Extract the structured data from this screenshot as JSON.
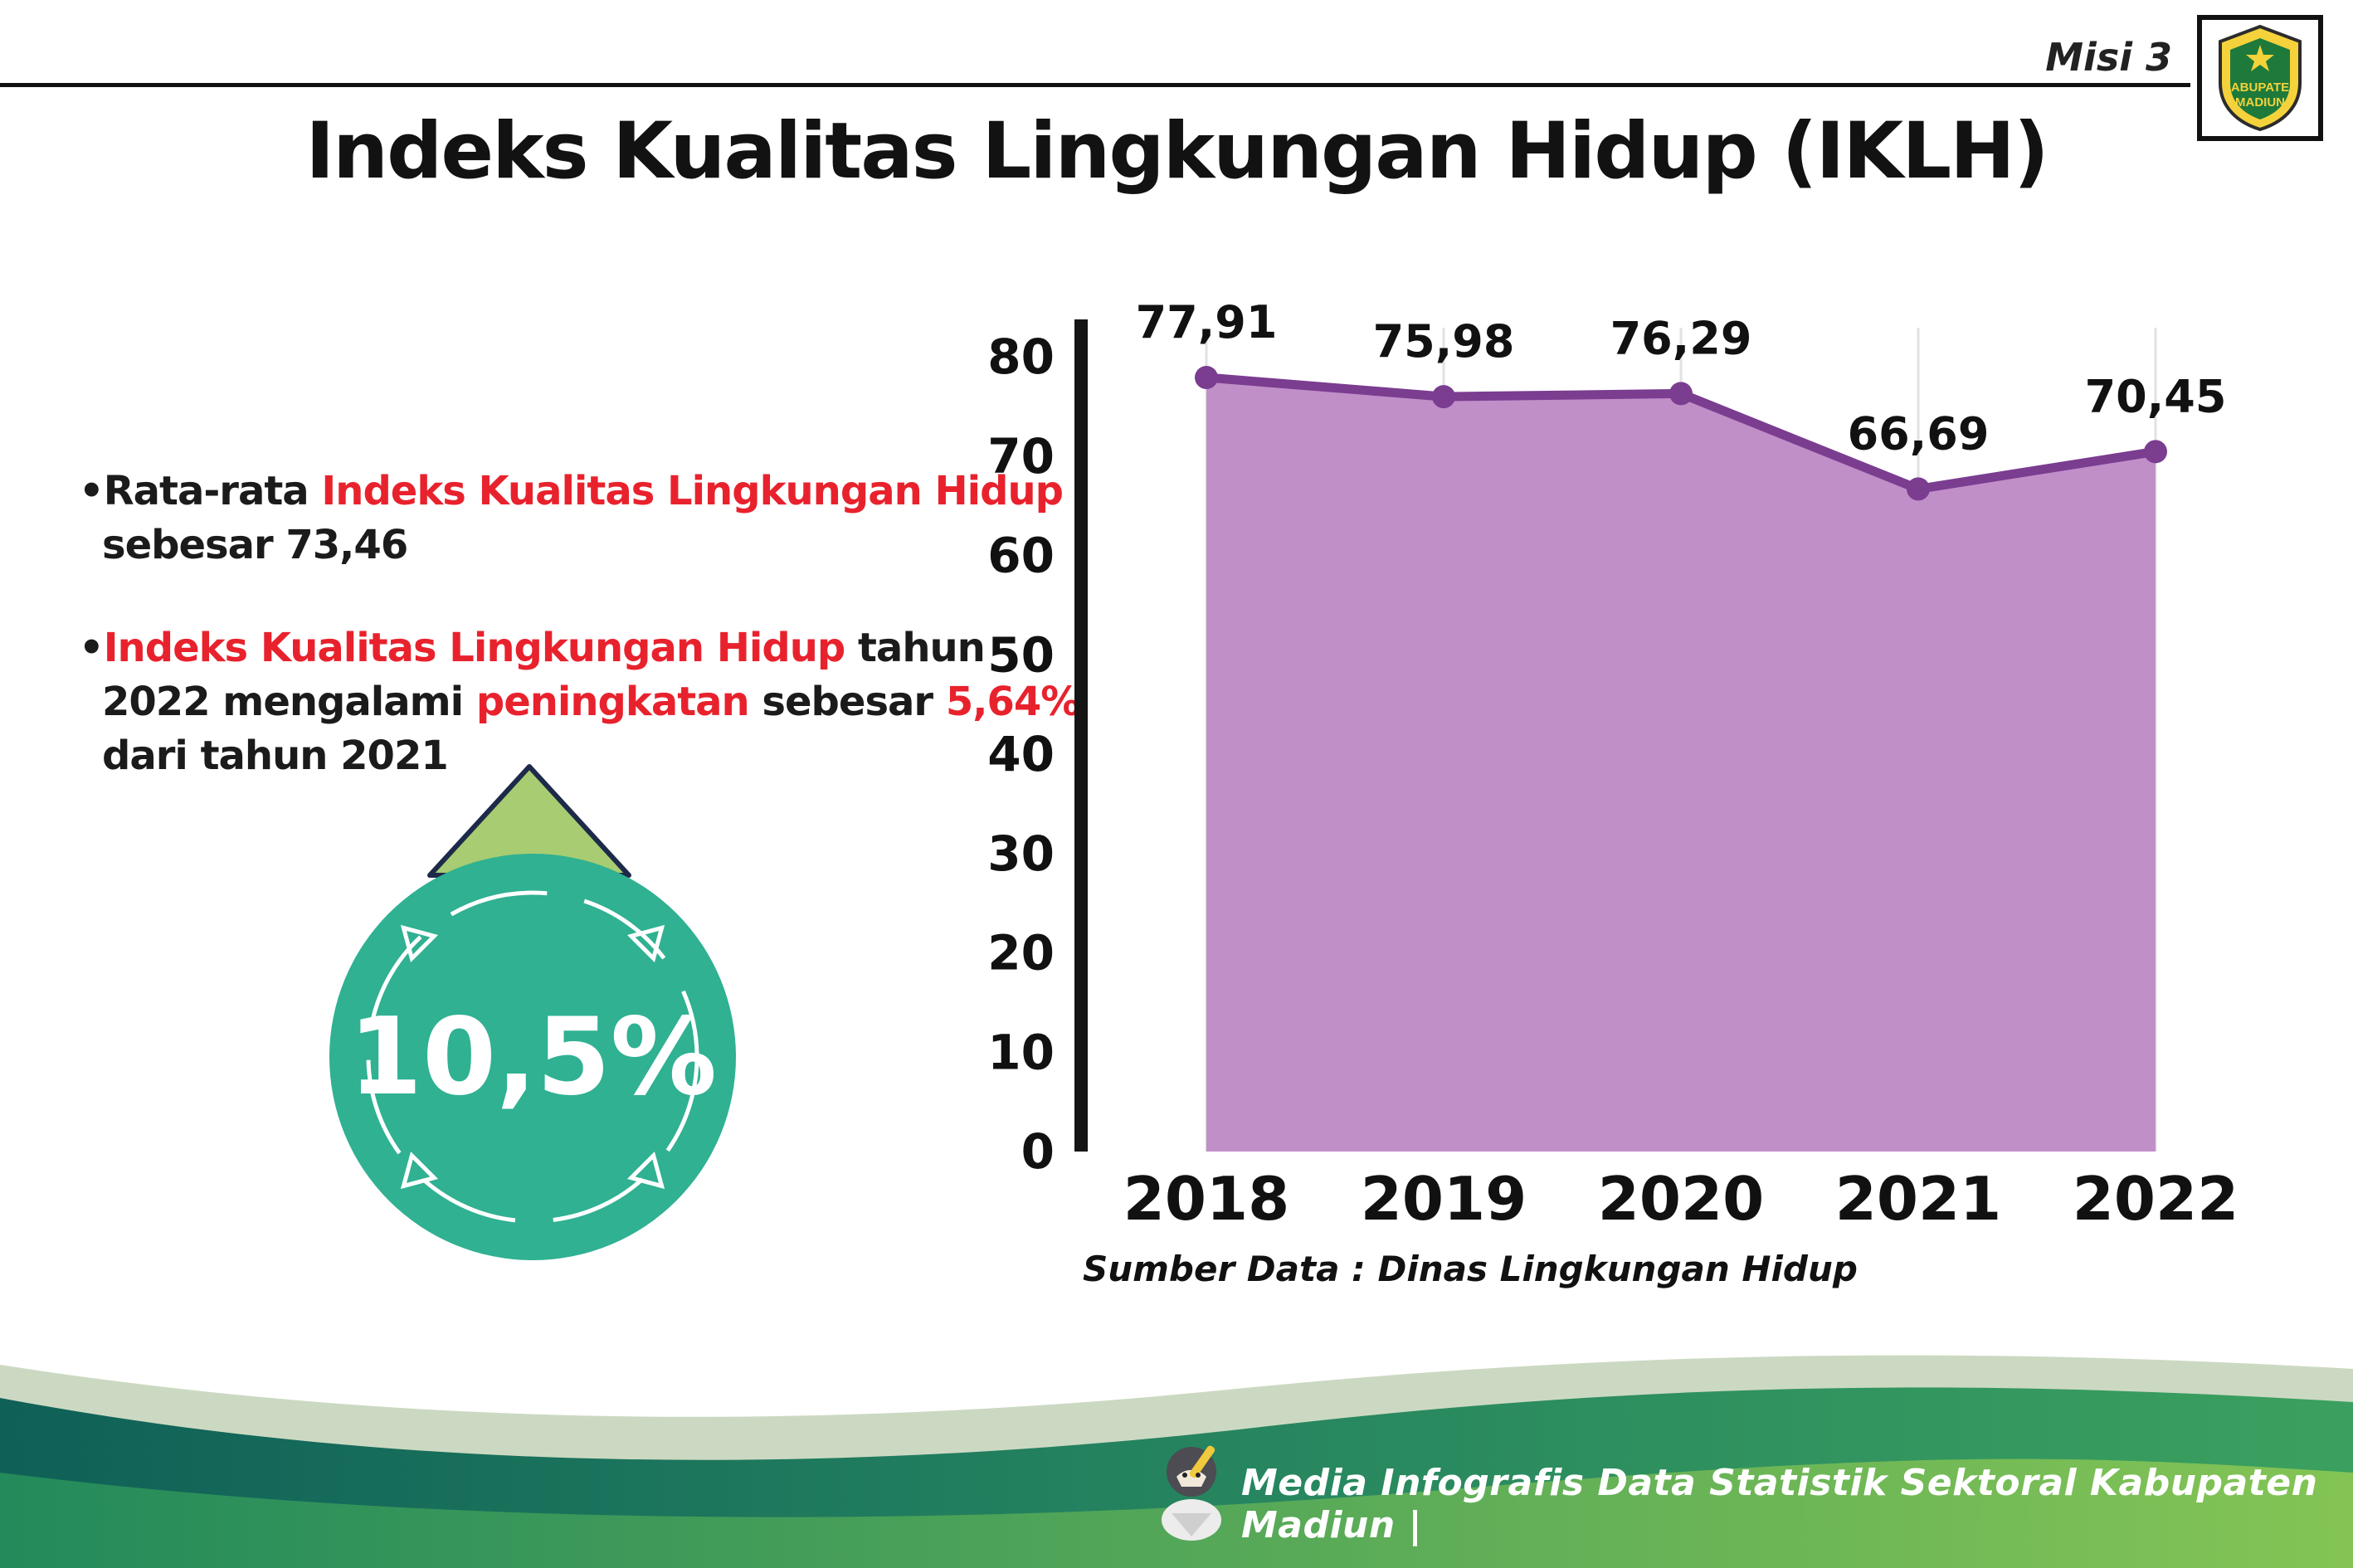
{
  "header": {
    "misi_label": "Misi 3",
    "title": "Indeks Kualitas Lingkungan Hidup (IKLH)",
    "logo": {
      "top": "KABUPATEN",
      "bottom": "MADIUN"
    }
  },
  "bullets": {
    "marker": "•",
    "b1_p1": "Rata-rata ",
    "b1_p2": "Indeks Kualitas Lingkungan Hidup",
    "b1_p3": " sebesar 73,46",
    "b2_p1": "Indeks Kualitas Lingkungan Hidup",
    "b2_p2": " tahun 2022 mengalami ",
    "b2_p3": "peningkatan",
    "b2_p4": " sebesar ",
    "b2_p5": "5,64%",
    "b2_p6": " dari tahun 2021"
  },
  "badge": {
    "value": "10,5%"
  },
  "chart_data": {
    "type": "area",
    "categories": [
      "2018",
      "2019",
      "2020",
      "2021",
      "2022"
    ],
    "values": [
      77.91,
      75.98,
      76.29,
      66.69,
      70.45
    ],
    "value_labels": [
      "77,91",
      "75,98",
      "76,29",
      "66,69",
      "70,45"
    ],
    "ylim": [
      0,
      80
    ],
    "yticks": [
      0,
      10,
      20,
      30,
      40,
      50,
      60,
      70,
      80
    ],
    "grid": "vertical-light",
    "legend": "none",
    "fill_color": "#c18fc8",
    "line_color": "#7a3d90",
    "source": "Sumber Data : Dinas Lingkungan Hidup"
  },
  "footer": {
    "credit": "Media Infografis Data Statistik Sektoral Kabupaten Madiun |"
  },
  "colors": {
    "accent_red": "#e8222d",
    "badge_green": "#2fb192",
    "arrow_green": "#a8cc72"
  }
}
